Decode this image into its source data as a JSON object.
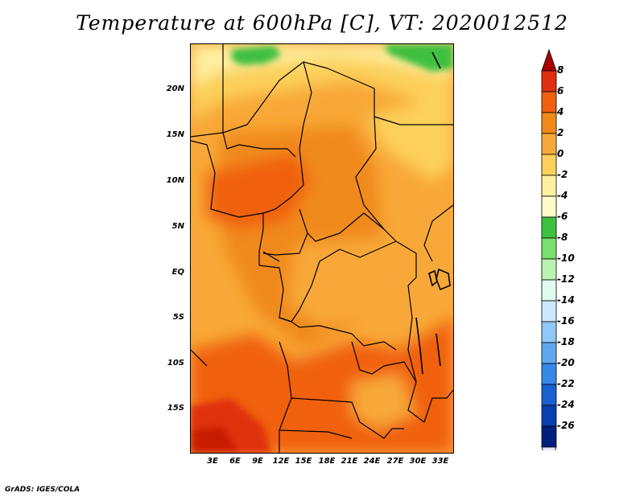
{
  "title": "Temperature at 600hPa [C], VT: 2020012512",
  "credit": "GrADS: IGES/COLA",
  "map": {
    "region": "Central Africa",
    "lat_labels": [
      "20N",
      "15N",
      "10N",
      "5N",
      "EQ",
      "5S",
      "10S",
      "15S"
    ],
    "lon_labels": [
      "3E",
      "6E",
      "9E",
      "12E",
      "15E",
      "18E",
      "21E",
      "24E",
      "27E",
      "30E",
      "33E"
    ]
  },
  "colorbar": {
    "labels": [
      "8",
      "6",
      "4",
      "2",
      "0",
      "-2",
      "-4",
      "-6",
      "-8",
      "-10",
      "-12",
      "-14",
      "-16",
      "-18",
      "-20",
      "-22",
      "-24",
      "-26"
    ],
    "colors": [
      "#a80000",
      "#e03010",
      "#f06010",
      "#f08a1a",
      "#f8a838",
      "#fcd05a",
      "#fef0a0",
      "#fffcc8",
      "#40c040",
      "#78e070",
      "#b8f4b0",
      "#e0fcf0",
      "#cce8ff",
      "#90c8f8",
      "#60a8f0",
      "#3888e8",
      "#1a60d0",
      "#0840b0",
      "#002080",
      "#e8e8ff"
    ]
  }
}
